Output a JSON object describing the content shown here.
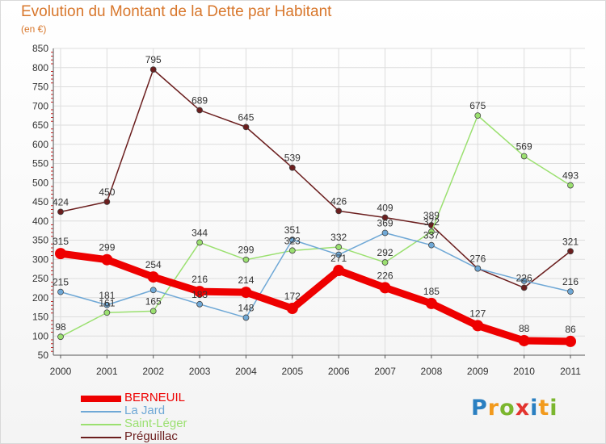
{
  "title": "Evolution du Montant de la Dette par Habitant",
  "unit_label": "(en €)",
  "logo": {
    "text": "Proxiti",
    "letters": [
      {
        "ch": "P",
        "color": "#2a7fc1"
      },
      {
        "ch": "r",
        "color": "#f29a1d"
      },
      {
        "ch": "o",
        "color": "#7bb62e"
      },
      {
        "ch": "x",
        "color": "#e3342f"
      },
      {
        "ch": "i",
        "color": "#2a7fc1"
      },
      {
        "ch": "t",
        "color": "#f29a1d"
      },
      {
        "ch": "i",
        "color": "#7bb62e"
      }
    ]
  },
  "chart_data": {
    "type": "line",
    "title": "Evolution du Montant de la Dette par Habitant",
    "ylabel": "(en €)",
    "x": [
      "2000",
      "2001",
      "2002",
      "2003",
      "2004",
      "2005",
      "2006",
      "2007",
      "2008",
      "2009",
      "2010",
      "2011"
    ],
    "ylim": [
      50,
      850
    ],
    "yticks": [
      50,
      100,
      150,
      200,
      250,
      300,
      350,
      400,
      450,
      500,
      550,
      600,
      650,
      700,
      750,
      800,
      850
    ],
    "grid": true,
    "legend_position": "bottom-left",
    "series": [
      {
        "name": "BERNEUIL",
        "color": "#ee0000",
        "values": [
          315,
          299,
          254,
          216,
          214,
          172,
          271,
          226,
          185,
          127,
          88,
          86
        ]
      },
      {
        "name": "La Jard",
        "color": "#6fa8d6",
        "values": [
          215,
          181,
          220,
          183,
          148,
          351,
          312,
          369,
          337,
          276,
          244,
          216
        ]
      },
      {
        "name": "Saint-Léger",
        "color": "#9be070",
        "values": [
          98,
          161,
          165,
          344,
          299,
          323,
          332,
          292,
          372,
          675,
          569,
          493
        ]
      },
      {
        "name": "Préguillac",
        "color": "#6b1e1e",
        "values": [
          424,
          450,
          795,
          689,
          645,
          539,
          426,
          409,
          389,
          276,
          226,
          321
        ]
      }
    ],
    "data_labels": [
      [
        315,
        299,
        254,
        216,
        214,
        172,
        271,
        226,
        185,
        127,
        88,
        86
      ],
      [
        215,
        181,
        "",
        183,
        148,
        351,
        "",
        369,
        337,
        "",
        "",
        216
      ],
      [
        98,
        161,
        165,
        344,
        299,
        323,
        332,
        292,
        372,
        675,
        569,
        493
      ],
      [
        424,
        450,
        795,
        689,
        645,
        539,
        426,
        409,
        389,
        276,
        226,
        321
      ]
    ]
  }
}
